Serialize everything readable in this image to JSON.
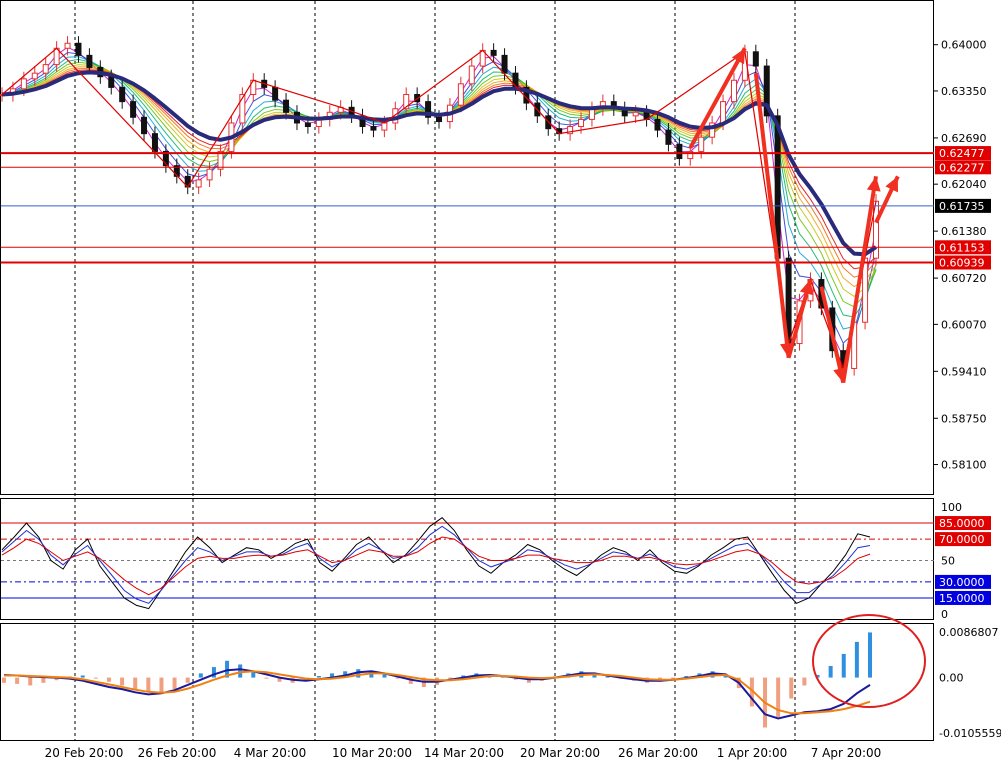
{
  "colors": {
    "background": "#ffffff",
    "frame": "#000000",
    "grid": "#000000",
    "bull": "#e53030",
    "bear": "#111111",
    "slow_ma": "#2a2a7a",
    "hline": "#e00000",
    "current_line": "#3060d0",
    "current_tag_bg": "#000000",
    "arrow": "#f03020",
    "ribbon": [
      "#c000c0",
      "#2030d0",
      "#00a0d0",
      "#00b060",
      "#60c000",
      "#c0c000",
      "#f0a000",
      "#f06000",
      "#e00000"
    ],
    "stoch_fast": "#000000",
    "stoch_mid": "#2030d0",
    "stoch_slow": "#e00000",
    "macd_pos": "#3090e0",
    "macd_neg": "#f0a080",
    "macd_line": "#1a1a9a",
    "signal_line": "#f08010",
    "circle": "#e02020"
  },
  "chart_data": [
    {
      "type": "candlestick",
      "panel": "price",
      "ylim": [
        0.577,
        0.646
      ],
      "x_tick_labels": [
        "20 Feb 20:00",
        "26 Feb 20:00",
        "4 Mar 20:00",
        "10 Mar 20:00",
        "14 Mar 20:00",
        "20 Mar 20:00",
        "26 Mar 20:00",
        "1 Apr 20:00",
        "7 Apr 20:00"
      ],
      "y_tick_labels": [
        "0.64000",
        "0.63350",
        "0.62690",
        "0.62040",
        "0.61380",
        "0.60720",
        "0.60070",
        "0.59410",
        "0.58750",
        "0.58100"
      ],
      "y_ticks": [
        0.64,
        0.6335,
        0.6269,
        0.6204,
        0.6138,
        0.6072,
        0.6007,
        0.5941,
        0.5875,
        0.581
      ],
      "close_series": [
        0.633,
        0.6338,
        0.6352,
        0.636,
        0.6372,
        0.6395,
        0.6402,
        0.6385,
        0.6368,
        0.6355,
        0.634,
        0.632,
        0.6298,
        0.6275,
        0.625,
        0.623,
        0.6215,
        0.62,
        0.621,
        0.6225,
        0.625,
        0.629,
        0.633,
        0.635,
        0.634,
        0.6322,
        0.6305,
        0.629,
        0.6285,
        0.6295,
        0.6305,
        0.6312,
        0.63,
        0.6285,
        0.628,
        0.629,
        0.631,
        0.633,
        0.632,
        0.6298,
        0.6292,
        0.6315,
        0.6345,
        0.637,
        0.6392,
        0.6385,
        0.636,
        0.634,
        0.6318,
        0.63,
        0.6282,
        0.6275,
        0.6285,
        0.6295,
        0.631,
        0.632,
        0.631,
        0.63,
        0.6305,
        0.6295,
        0.628,
        0.626,
        0.624,
        0.625,
        0.627,
        0.629,
        0.632,
        0.635,
        0.639,
        0.637,
        0.63,
        0.61,
        0.598,
        0.604,
        0.607,
        0.603,
        0.597,
        0.5945,
        0.601,
        0.61,
        0.618
      ],
      "horizontal_levels": [
        {
          "label": "0.62477",
          "value": 0.62477,
          "style": "thick"
        },
        {
          "label": "0.62277",
          "value": 0.62277,
          "style": "thin"
        },
        {
          "label": "0.61153",
          "value": 0.61153,
          "style": "thin"
        },
        {
          "label": "0.60939",
          "value": 0.60939,
          "style": "thick"
        }
      ],
      "current_price": {
        "label": "0.61735",
        "value": 0.61735
      }
    },
    {
      "type": "line",
      "panel": "stochastic",
      "ylim": [
        0,
        100
      ],
      "y_tick_labels": [
        "100",
        "50",
        "0"
      ],
      "levels": [
        {
          "label": "85.0000",
          "value": 85,
          "color": "#e00000"
        },
        {
          "label": "70.0000",
          "value": 70,
          "color": "#e00000"
        },
        {
          "label": "30.0000",
          "value": 30,
          "color": "#0000e0"
        },
        {
          "label": "15.0000",
          "value": 15,
          "color": "#0000e0"
        }
      ],
      "series": [
        {
          "values": [
            60,
            72,
            85,
            72,
            50,
            42,
            60,
            70,
            45,
            30,
            15,
            8,
            5,
            22,
            40,
            58,
            72,
            62,
            48,
            55,
            62,
            60,
            52,
            58,
            66,
            70,
            48,
            40,
            52,
            65,
            72,
            60,
            48,
            55,
            68,
            82,
            90,
            78,
            60,
            45,
            38,
            48,
            55,
            65,
            60,
            50,
            42,
            36,
            45,
            55,
            62,
            58,
            50,
            60,
            48,
            40,
            38,
            45,
            55,
            62,
            70,
            72,
            55,
            38,
            22,
            10,
            15,
            28,
            40,
            55,
            75,
            72
          ]
        },
        {
          "values": [
            58,
            68,
            78,
            70,
            55,
            46,
            56,
            64,
            50,
            36,
            22,
            14,
            10,
            22,
            36,
            50,
            62,
            58,
            50,
            54,
            58,
            58,
            54,
            56,
            62,
            66,
            52,
            44,
            50,
            60,
            66,
            60,
            52,
            54,
            62,
            74,
            82,
            74,
            62,
            50,
            44,
            48,
            52,
            60,
            58,
            52,
            46,
            42,
            46,
            52,
            58,
            56,
            52,
            56,
            50,
            44,
            42,
            46,
            52,
            58,
            64,
            66,
            56,
            44,
            30,
            20,
            20,
            28,
            36,
            48,
            62,
            64
          ]
        },
        {
          "values": [
            55,
            62,
            70,
            66,
            58,
            50,
            54,
            58,
            52,
            42,
            32,
            24,
            18,
            24,
            34,
            44,
            52,
            54,
            52,
            52,
            54,
            55,
            54,
            55,
            58,
            60,
            54,
            48,
            50,
            55,
            60,
            58,
            54,
            54,
            58,
            66,
            72,
            70,
            62,
            54,
            50,
            50,
            52,
            55,
            55,
            52,
            50,
            48,
            48,
            50,
            54,
            54,
            52,
            53,
            50,
            47,
            46,
            47,
            50,
            54,
            58,
            60,
            56,
            48,
            38,
            30,
            28,
            30,
            34,
            42,
            52,
            56
          ]
        }
      ]
    },
    {
      "type": "bar",
      "panel": "macd",
      "ylim": [
        -0.0105559,
        0.0086807
      ],
      "y_tick_labels": [
        "0.0086807",
        "0.00",
        "-0.0105559"
      ],
      "histogram": [
        -0.001,
        -0.0012,
        -0.0015,
        -0.001,
        -0.0005,
        0.0002,
        0.0004,
        -0.0002,
        -0.0008,
        -0.0015,
        -0.0022,
        -0.0028,
        -0.003,
        -0.0022,
        -0.001,
        0.0008,
        0.002,
        0.0032,
        0.0025,
        0.001,
        -0.0002,
        -0.0008,
        -0.001,
        -0.0004,
        0.0003,
        0.0008,
        0.0012,
        0.0016,
        0.0012,
        0.0006,
        -0.0002,
        -0.0012,
        -0.0018,
        -0.0014,
        -0.0004,
        0.0004,
        0.0008,
        0.0006,
        0.0002,
        -0.0004,
        -0.001,
        -0.0006,
        0.0002,
        0.0008,
        0.0012,
        0.0008,
        0.0002,
        -0.0002,
        -0.0006,
        -0.001,
        -0.0008,
        -0.0003,
        0.0003,
        0.0008,
        0.0012,
        0.0006,
        -0.002,
        -0.0055,
        -0.0095,
        -0.0075,
        -0.004,
        -0.0015,
        0.0005,
        0.0022,
        0.0045,
        0.0068,
        0.0086
      ],
      "series": [
        {
          "values": [
            0.0005,
            0.0004,
            0.0002,
            0.0001,
            0.0,
            -0.0002,
            -0.0006,
            -0.0012,
            -0.0018,
            -0.0022,
            -0.0028,
            -0.0032,
            -0.003,
            -0.0024,
            -0.0014,
            -0.0004,
            0.0006,
            0.0014,
            0.0016,
            0.0012,
            0.0006,
            0.0,
            -0.0004,
            -0.0006,
            -0.0003,
            0.0,
            0.0004,
            0.001,
            0.0012,
            0.0008,
            0.0002,
            -0.0004,
            -0.0008,
            -0.0008,
            -0.0004,
            0.0,
            0.0004,
            0.0005,
            0.0003,
            0.0,
            -0.0003,
            -0.0003,
            0.0,
            0.0004,
            0.0008,
            0.0008,
            0.0004,
            0.0,
            -0.0003,
            -0.0006,
            -0.0006,
            -0.0004,
            -0.0001,
            0.0003,
            0.0008,
            0.0006,
            -0.001,
            -0.004,
            -0.007,
            -0.0078,
            -0.0072,
            -0.0066,
            -0.0064,
            -0.006,
            -0.005,
            -0.003,
            -0.0014
          ]
        },
        {
          "values": [
            0.0004,
            0.0004,
            0.0003,
            0.0002,
            0.0001,
            0.0,
            -0.0003,
            -0.0008,
            -0.0013,
            -0.0018,
            -0.0023,
            -0.0027,
            -0.0029,
            -0.0027,
            -0.0021,
            -0.0013,
            -0.0004,
            0.0004,
            0.001,
            0.0012,
            0.001,
            0.0006,
            0.0002,
            -0.0002,
            -0.0003,
            -0.0002,
            0.0001,
            0.0005,
            0.0008,
            0.0008,
            0.0005,
            0.0001,
            -0.0003,
            -0.0005,
            -0.0005,
            -0.0003,
            0.0,
            0.0003,
            0.0003,
            0.0002,
            0.0,
            -0.0001,
            0.0,
            0.0002,
            0.0005,
            0.0006,
            0.0005,
            0.0003,
            0.0,
            -0.0003,
            -0.0004,
            -0.0004,
            -0.0002,
            0.0001,
            0.0004,
            0.0005,
            -0.0004,
            -0.0024,
            -0.0048,
            -0.0062,
            -0.0068,
            -0.0068,
            -0.0066,
            -0.0064,
            -0.006,
            -0.0054,
            -0.0046
          ]
        }
      ]
    }
  ]
}
